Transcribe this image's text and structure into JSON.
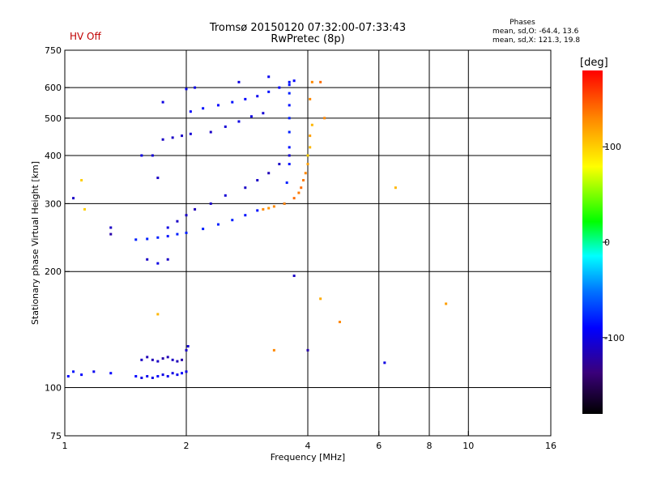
{
  "header": {
    "hv_status": "HV Off",
    "title_line1": "Tromsø 20150120 07:32:00-07:33:43",
    "title_line2": "RwPretec (8p)"
  },
  "phase_info": {
    "title": "Phases",
    "o_mode": "mean, sd,O: -64.4, 13.6",
    "x_mode": "mean, sd,X: 121.3, 19.8"
  },
  "colorbar": {
    "unit": "[deg]",
    "ticks": [
      {
        "value": 100,
        "label": "100"
      },
      {
        "value": 0,
        "label": "0"
      },
      {
        "value": -100,
        "label": "-100"
      }
    ],
    "range": [
      -180,
      180
    ]
  },
  "chart_data": {
    "type": "scatter",
    "xlabel": "Frequency [MHz]",
    "ylabel": "Stationary phase Virtual Height [km]",
    "x_scale": "log",
    "y_scale": "log",
    "xlim": [
      1,
      16
    ],
    "ylim": [
      75,
      750
    ],
    "x_ticks": [
      {
        "value": 1,
        "label": "1"
      },
      {
        "value": 2,
        "label": "2"
      },
      {
        "value": 4,
        "label": "4"
      },
      {
        "value": 6,
        "label": "6"
      },
      {
        "value": 8,
        "label": "8"
      },
      {
        "value": 10,
        "label": "10"
      },
      {
        "value": 16,
        "label": "16"
      }
    ],
    "y_ticks": [
      {
        "value": 75,
        "label": "75"
      },
      {
        "value": 100,
        "label": "100"
      },
      {
        "value": 200,
        "label": "200"
      },
      {
        "value": 300,
        "label": "300"
      },
      {
        "value": 400,
        "label": "400"
      },
      {
        "value": 500,
        "label": "500"
      },
      {
        "value": 600,
        "label": "600"
      },
      {
        "value": 750,
        "label": "750"
      }
    ],
    "x_grid": [
      2,
      4,
      6,
      8,
      10
    ],
    "y_grid": [
      100,
      200,
      300,
      400,
      500,
      600
    ],
    "color_key": "phase_deg",
    "series": [
      {
        "values": [
          [
            1.02,
            107,
            -90
          ],
          [
            1.05,
            110,
            -85
          ],
          [
            1.1,
            108,
            -90
          ],
          [
            1.18,
            110,
            -95
          ],
          [
            1.3,
            109,
            -90
          ],
          [
            1.5,
            107,
            -90
          ],
          [
            1.55,
            106,
            -100
          ],
          [
            1.6,
            107,
            -95
          ],
          [
            1.65,
            106,
            -100
          ],
          [
            1.7,
            107,
            -90
          ],
          [
            1.75,
            108,
            -100
          ],
          [
            1.8,
            107,
            -95
          ],
          [
            1.85,
            109,
            -100
          ],
          [
            1.9,
            108,
            -95
          ],
          [
            1.95,
            109,
            -90
          ],
          [
            2.0,
            110,
            -100
          ],
          [
            1.55,
            118,
            -110
          ],
          [
            1.6,
            120,
            -115
          ],
          [
            1.65,
            118,
            -115
          ],
          [
            1.7,
            117,
            -110
          ],
          [
            1.75,
            119,
            -120
          ],
          [
            1.8,
            120,
            -115
          ],
          [
            1.85,
            118,
            -110
          ],
          [
            1.9,
            117,
            -115
          ],
          [
            1.95,
            118,
            -120
          ],
          [
            2.0,
            125,
            -110
          ],
          [
            2.02,
            128,
            -105
          ],
          [
            1.5,
            242,
            -80
          ],
          [
            1.6,
            243,
            -80
          ],
          [
            1.7,
            245,
            -80
          ],
          [
            1.8,
            247,
            -85
          ],
          [
            1.9,
            250,
            -80
          ],
          [
            2.0,
            252,
            -80
          ],
          [
            2.2,
            258,
            -80
          ],
          [
            2.4,
            265,
            -80
          ],
          [
            2.6,
            272,
            -80
          ],
          [
            2.8,
            280,
            -85
          ],
          [
            3.0,
            288,
            -85
          ],
          [
            1.8,
            260,
            -100
          ],
          [
            1.9,
            270,
            -110
          ],
          [
            2.0,
            280,
            -110
          ],
          [
            2.1,
            290,
            -115
          ],
          [
            2.3,
            300,
            -110
          ],
          [
            2.5,
            315,
            -105
          ],
          [
            2.8,
            330,
            -110
          ],
          [
            3.0,
            345,
            -110
          ],
          [
            3.2,
            360,
            -115
          ],
          [
            3.4,
            380,
            -110
          ],
          [
            3.6,
            400,
            -105
          ],
          [
            1.75,
            440,
            -110
          ],
          [
            1.85,
            445,
            -110
          ],
          [
            1.95,
            450,
            -110
          ],
          [
            2.05,
            455,
            -105
          ],
          [
            2.3,
            460,
            -110
          ],
          [
            2.5,
            475,
            -105
          ],
          [
            2.7,
            490,
            -100
          ],
          [
            2.9,
            505,
            -100
          ],
          [
            3.1,
            515,
            -105
          ],
          [
            2.05,
            520,
            -90
          ],
          [
            2.2,
            530,
            -85
          ],
          [
            2.4,
            540,
            -90
          ],
          [
            2.6,
            550,
            -85
          ],
          [
            2.8,
            560,
            -90
          ],
          [
            3.0,
            570,
            -95
          ],
          [
            3.2,
            585,
            -85
          ],
          [
            3.4,
            600,
            -90
          ],
          [
            3.6,
            610,
            -85
          ],
          [
            3.7,
            625,
            -90
          ],
          [
            2.0,
            595,
            -95
          ],
          [
            2.1,
            600,
            -100
          ],
          [
            2.7,
            620,
            -100
          ],
          [
            3.2,
            640,
            -95
          ],
          [
            3.5,
            300,
            -80
          ],
          [
            3.55,
            340,
            -80
          ],
          [
            3.6,
            380,
            -85
          ],
          [
            3.6,
            420,
            -85
          ],
          [
            3.6,
            460,
            -80
          ],
          [
            3.6,
            500,
            -80
          ],
          [
            3.6,
            540,
            -85
          ],
          [
            3.6,
            580,
            -80
          ],
          [
            3.6,
            620,
            -85
          ],
          [
            3.1,
            290,
            130
          ],
          [
            3.2,
            292,
            125
          ],
          [
            3.3,
            295,
            130
          ],
          [
            3.5,
            300,
            130
          ],
          [
            3.7,
            310,
            140
          ],
          [
            3.8,
            320,
            135
          ],
          [
            3.85,
            330,
            140
          ],
          [
            3.9,
            345,
            135
          ],
          [
            3.95,
            360,
            130
          ],
          [
            4.0,
            380,
            120
          ],
          [
            4.0,
            400,
            100
          ],
          [
            4.05,
            420,
            110
          ],
          [
            4.05,
            450,
            120
          ],
          [
            4.1,
            480,
            110
          ],
          [
            4.05,
            560,
            130
          ],
          [
            4.1,
            620,
            130
          ],
          [
            4.3,
            620,
            140
          ],
          [
            4.4,
            500,
            130
          ],
          [
            1.1,
            345,
            100
          ],
          [
            1.12,
            290,
            100
          ],
          [
            6.6,
            330,
            110
          ],
          [
            8.8,
            165,
            120
          ],
          [
            4.8,
            148,
            130
          ],
          [
            4.3,
            170,
            115
          ],
          [
            3.3,
            125,
            130
          ],
          [
            1.7,
            155,
            110
          ],
          [
            1.55,
            400,
            -100
          ],
          [
            1.65,
            400,
            -105
          ],
          [
            1.7,
            350,
            -110
          ],
          [
            1.3,
            260,
            -110
          ],
          [
            1.3,
            250,
            -120
          ],
          [
            1.05,
            310,
            -110
          ],
          [
            1.6,
            215,
            -110
          ],
          [
            1.7,
            210,
            -100
          ],
          [
            1.8,
            215,
            -110
          ],
          [
            1.75,
            550,
            -100
          ],
          [
            3.7,
            195,
            -110
          ],
          [
            6.2,
            116,
            -100
          ],
          [
            4.0,
            125,
            -120
          ]
        ]
      }
    ]
  }
}
